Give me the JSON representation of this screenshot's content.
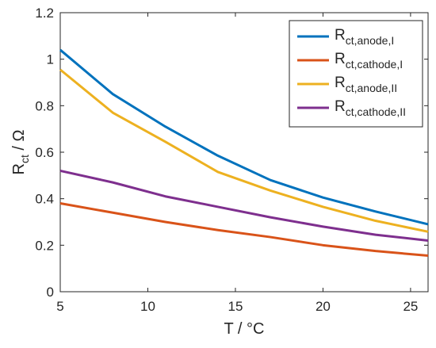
{
  "chart_data": {
    "type": "line",
    "title": "",
    "xlabel": "T / °C",
    "ylabel_main": "R",
    "ylabel_sub": "ct",
    "ylabel_rest": " / Ω",
    "xlim": [
      5,
      26
    ],
    "ylim": [
      0,
      1.2
    ],
    "xticks": [
      5,
      10,
      15,
      20,
      25
    ],
    "yticks": [
      0,
      0.2,
      0.4,
      0.6,
      0.8,
      1,
      1.2
    ],
    "xtick_labels": [
      "5",
      "10",
      "15",
      "20",
      "25"
    ],
    "ytick_labels": [
      "0",
      "0.2",
      "0.4",
      "0.6",
      "0.8",
      "1",
      "1.2"
    ],
    "grid": false,
    "box": true,
    "legend_position": "top-right",
    "series": [
      {
        "name": "R_ct,anode,I",
        "label_main": "R",
        "label_sub": "ct,anode,I",
        "color": "#0072BD",
        "x": [
          5,
          8,
          11,
          14,
          17,
          20,
          23,
          26
        ],
        "y": [
          1.04,
          0.85,
          0.71,
          0.585,
          0.48,
          0.405,
          0.345,
          0.29
        ]
      },
      {
        "name": "R_ct,cathode,I",
        "label_main": "R",
        "label_sub": "ct,cathode,I",
        "color": "#D95319",
        "x": [
          5,
          8,
          11,
          14,
          17,
          20,
          23,
          26
        ],
        "y": [
          0.38,
          0.34,
          0.3,
          0.265,
          0.235,
          0.2,
          0.175,
          0.155
        ]
      },
      {
        "name": "R_ct,anode,II",
        "label_main": "R",
        "label_sub": "ct,anode,II",
        "color": "#EDB120",
        "x": [
          5,
          8,
          11,
          14,
          17,
          20,
          23,
          26
        ],
        "y": [
          0.955,
          0.77,
          0.645,
          0.515,
          0.435,
          0.365,
          0.305,
          0.258
        ]
      },
      {
        "name": "R_ct,cathode,II",
        "label_main": "R",
        "label_sub": "ct,cathode,II",
        "color": "#7E2F8E",
        "x": [
          5,
          8,
          11,
          14,
          17,
          20,
          23,
          26
        ],
        "y": [
          0.52,
          0.47,
          0.41,
          0.365,
          0.32,
          0.28,
          0.245,
          0.22
        ]
      }
    ]
  }
}
